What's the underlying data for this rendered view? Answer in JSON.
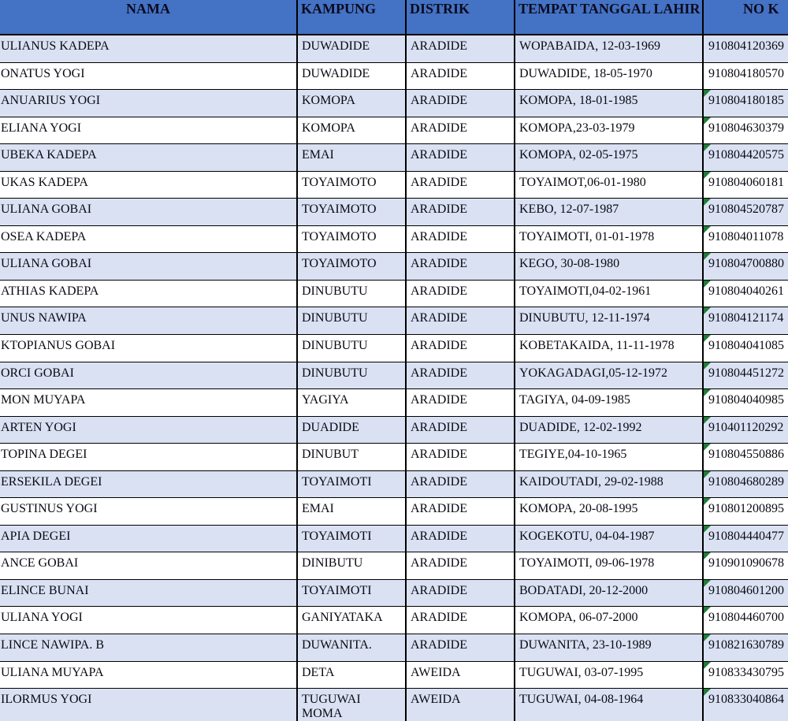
{
  "colors": {
    "header_bg": "#4472C4",
    "row_alt_bg": "#D9E1F2",
    "row_bg": "#FFFFFF",
    "grid_border": "#000000",
    "error_marker_green": "#217B39",
    "text": "#0A0A14"
  },
  "table": {
    "columns": [
      {
        "key": "nama",
        "label": "NAMA"
      },
      {
        "key": "kampung",
        "label": "KAMPUNG"
      },
      {
        "key": "distrik",
        "label": "DISTRIK"
      },
      {
        "key": "ttl",
        "label": "TEMPAT TANGGAL LAHIR"
      },
      {
        "key": "no",
        "label": "NO K"
      }
    ],
    "rows": [
      {
        "nama": "ULIANUS KADEPA",
        "kampung": "DUWADIDE",
        "distrik": "ARADIDE",
        "ttl": "WOPABAIDA, 12-03-1969",
        "no": "910804120369",
        "error_marker": false
      },
      {
        "nama": "ONATUS YOGI",
        "kampung": "DUWADIDE",
        "distrik": "ARADIDE",
        "ttl": "DUWADIDE, 18-05-1970",
        "no": "910804180570",
        "error_marker": false
      },
      {
        "nama": "ANUARIUS YOGI",
        "kampung": "KOMOPA",
        "distrik": "ARADIDE",
        "ttl": "KOMOPA, 18-01-1985",
        "no": "910804180185",
        "error_marker": true
      },
      {
        "nama": "ELIANA YOGI",
        "kampung": "KOMOPA",
        "distrik": "ARADIDE",
        "ttl": "KOMOPA,23-03-1979",
        "no": "910804630379",
        "error_marker": true
      },
      {
        "nama": "UBEKA KADEPA",
        "kampung": "EMAI",
        "distrik": "ARADIDE",
        "ttl": "KOMOPA, 02-05-1975",
        "no": "910804420575",
        "error_marker": true
      },
      {
        "nama": "UKAS KADEPA",
        "kampung": "TOYAIMOTO",
        "distrik": "ARADIDE",
        "ttl": "TOYAIMOT,06-01-1980",
        "no": "910804060181",
        "error_marker": true
      },
      {
        "nama": "ULIANA GOBAI",
        "kampung": "TOYAIMOTO",
        "distrik": "ARADIDE",
        "ttl": "KEBO, 12-07-1987",
        "no": "910804520787",
        "error_marker": true
      },
      {
        "nama": "OSEA KADEPA",
        "kampung": "TOYAIMOTO",
        "distrik": "ARADIDE",
        "ttl": "TOYAIMOTI, 01-01-1978",
        "no": "910804011078",
        "error_marker": true
      },
      {
        "nama": "ULIANA GOBAI",
        "kampung": "TOYAIMOTO",
        "distrik": "ARADIDE",
        "ttl": "KEGO, 30-08-1980",
        "no": "910804700880",
        "error_marker": true
      },
      {
        "nama": "ATHIAS KADEPA",
        "kampung": "DINUBUTU",
        "distrik": "ARADIDE",
        "ttl": "TOYAIMOTI,04-02-1961",
        "no": "910804040261",
        "error_marker": true
      },
      {
        "nama": "UNUS NAWIPA",
        "kampung": "DINUBUTU",
        "distrik": "ARADIDE",
        "ttl": "DINUBUTU, 12-11-1974",
        "no": "910804121174",
        "error_marker": true
      },
      {
        "nama": "KTOPIANUS GOBAI",
        "kampung": "DINUBUTU",
        "distrik": "ARADIDE",
        "ttl": "KOBETAKAIDA, 11-11-1978",
        "no": "910804041085",
        "error_marker": true
      },
      {
        "nama": "ORCI GOBAI",
        "kampung": "DINUBUTU",
        "distrik": "ARADIDE",
        "ttl": "YOKAGADAGI,05-12-1972",
        "no": "910804451272",
        "error_marker": true
      },
      {
        "nama": "MON MUYAPA",
        "kampung": "YAGIYA",
        "distrik": "ARADIDE",
        "ttl": "TAGIYA, 04-09-1985",
        "no": "910804040985",
        "error_marker": true
      },
      {
        "nama": "ARTEN YOGI",
        "kampung": "DUADIDE",
        "distrik": "ARADIDE",
        "ttl": "DUADIDE, 12-02-1992",
        "no": "910401120292",
        "error_marker": true
      },
      {
        "nama": "TOPINA DEGEI",
        "kampung": "DINUBUT",
        "distrik": "ARADIDE",
        "ttl": "TEGIYE,04-10-1965",
        "no": "910804550886",
        "error_marker": true
      },
      {
        "nama": "ERSEKILA DEGEI",
        "kampung": "TOYAIMOTI",
        "distrik": "ARADIDE",
        "ttl": "KAIDOUTADI, 29-02-1988",
        "no": "910804680289",
        "error_marker": true
      },
      {
        "nama": "GUSTINUS YOGI",
        "kampung": "EMAI",
        "distrik": "ARADIDE",
        "ttl": "KOMOPA, 20-08-1995",
        "no": "910801200895",
        "error_marker": true
      },
      {
        "nama": "APIA DEGEI",
        "kampung": "TOYAIMOTI",
        "distrik": "ARADIDE",
        "ttl": "KOGEKOTU, 04-04-1987",
        "no": "910804440477",
        "error_marker": true
      },
      {
        "nama": "ANCE GOBAI",
        "kampung": "DINIBUTU",
        "distrik": "ARADIDE",
        "ttl": "TOYAIMOTI, 09-06-1978",
        "no": "910901090678",
        "error_marker": true
      },
      {
        "nama": "ELINCE BUNAI",
        "kampung": "TOYAIMOTI",
        "distrik": "ARADIDE",
        "ttl": "BODATADI, 20-12-2000",
        "no": "910804601200",
        "error_marker": true
      },
      {
        "nama": "ULIANA YOGI",
        "kampung": "GANIYATAKA",
        "distrik": "ARADIDE",
        "ttl": "KOMOPA, 06-07-2000",
        "no": "910804460700",
        "error_marker": true
      },
      {
        "nama": "LINCE NAWIPA. B",
        "kampung": "DUWANITA.",
        "distrik": "ARADIDE",
        "ttl": "DUWANITA, 23-10-1989",
        "no": "910821630789",
        "error_marker": true
      },
      {
        "nama": "ULIANA MUYAPA",
        "kampung": "DETA",
        "distrik": "AWEIDA",
        "ttl": "TUGUWAI, 03-07-1995",
        "no": "910833430795",
        "error_marker": true
      },
      {
        "nama": "ILORMUS YOGI",
        "kampung": "TUGUWAI\nMOMA",
        "distrik": "AWEIDA",
        "ttl": "TUGUWAI, 04-08-1964",
        "no": "910833040864",
        "error_marker": true
      }
    ]
  }
}
